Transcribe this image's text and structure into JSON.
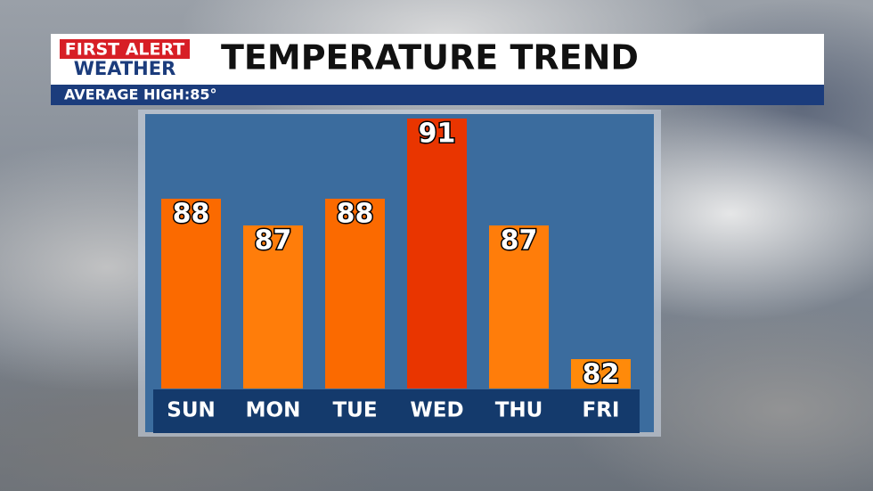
{
  "brand": {
    "line1": "FIRST ALERT",
    "line2": "WEATHER"
  },
  "chart_data": {
    "type": "bar",
    "title": "TEMPERATURE TREND",
    "subtitle": "AVERAGE HIGH:85°",
    "categories": [
      "SUN",
      "MON",
      "TUE",
      "WED",
      "THU",
      "FRI"
    ],
    "values": [
      88,
      87,
      88,
      91,
      87,
      82
    ],
    "colors": [
      "#fb6a00",
      "#ff7d0a",
      "#fb6a00",
      "#e93500",
      "#ff7d0a",
      "#ff8a0a"
    ],
    "ylim": [
      80.9,
      91.2
    ]
  }
}
